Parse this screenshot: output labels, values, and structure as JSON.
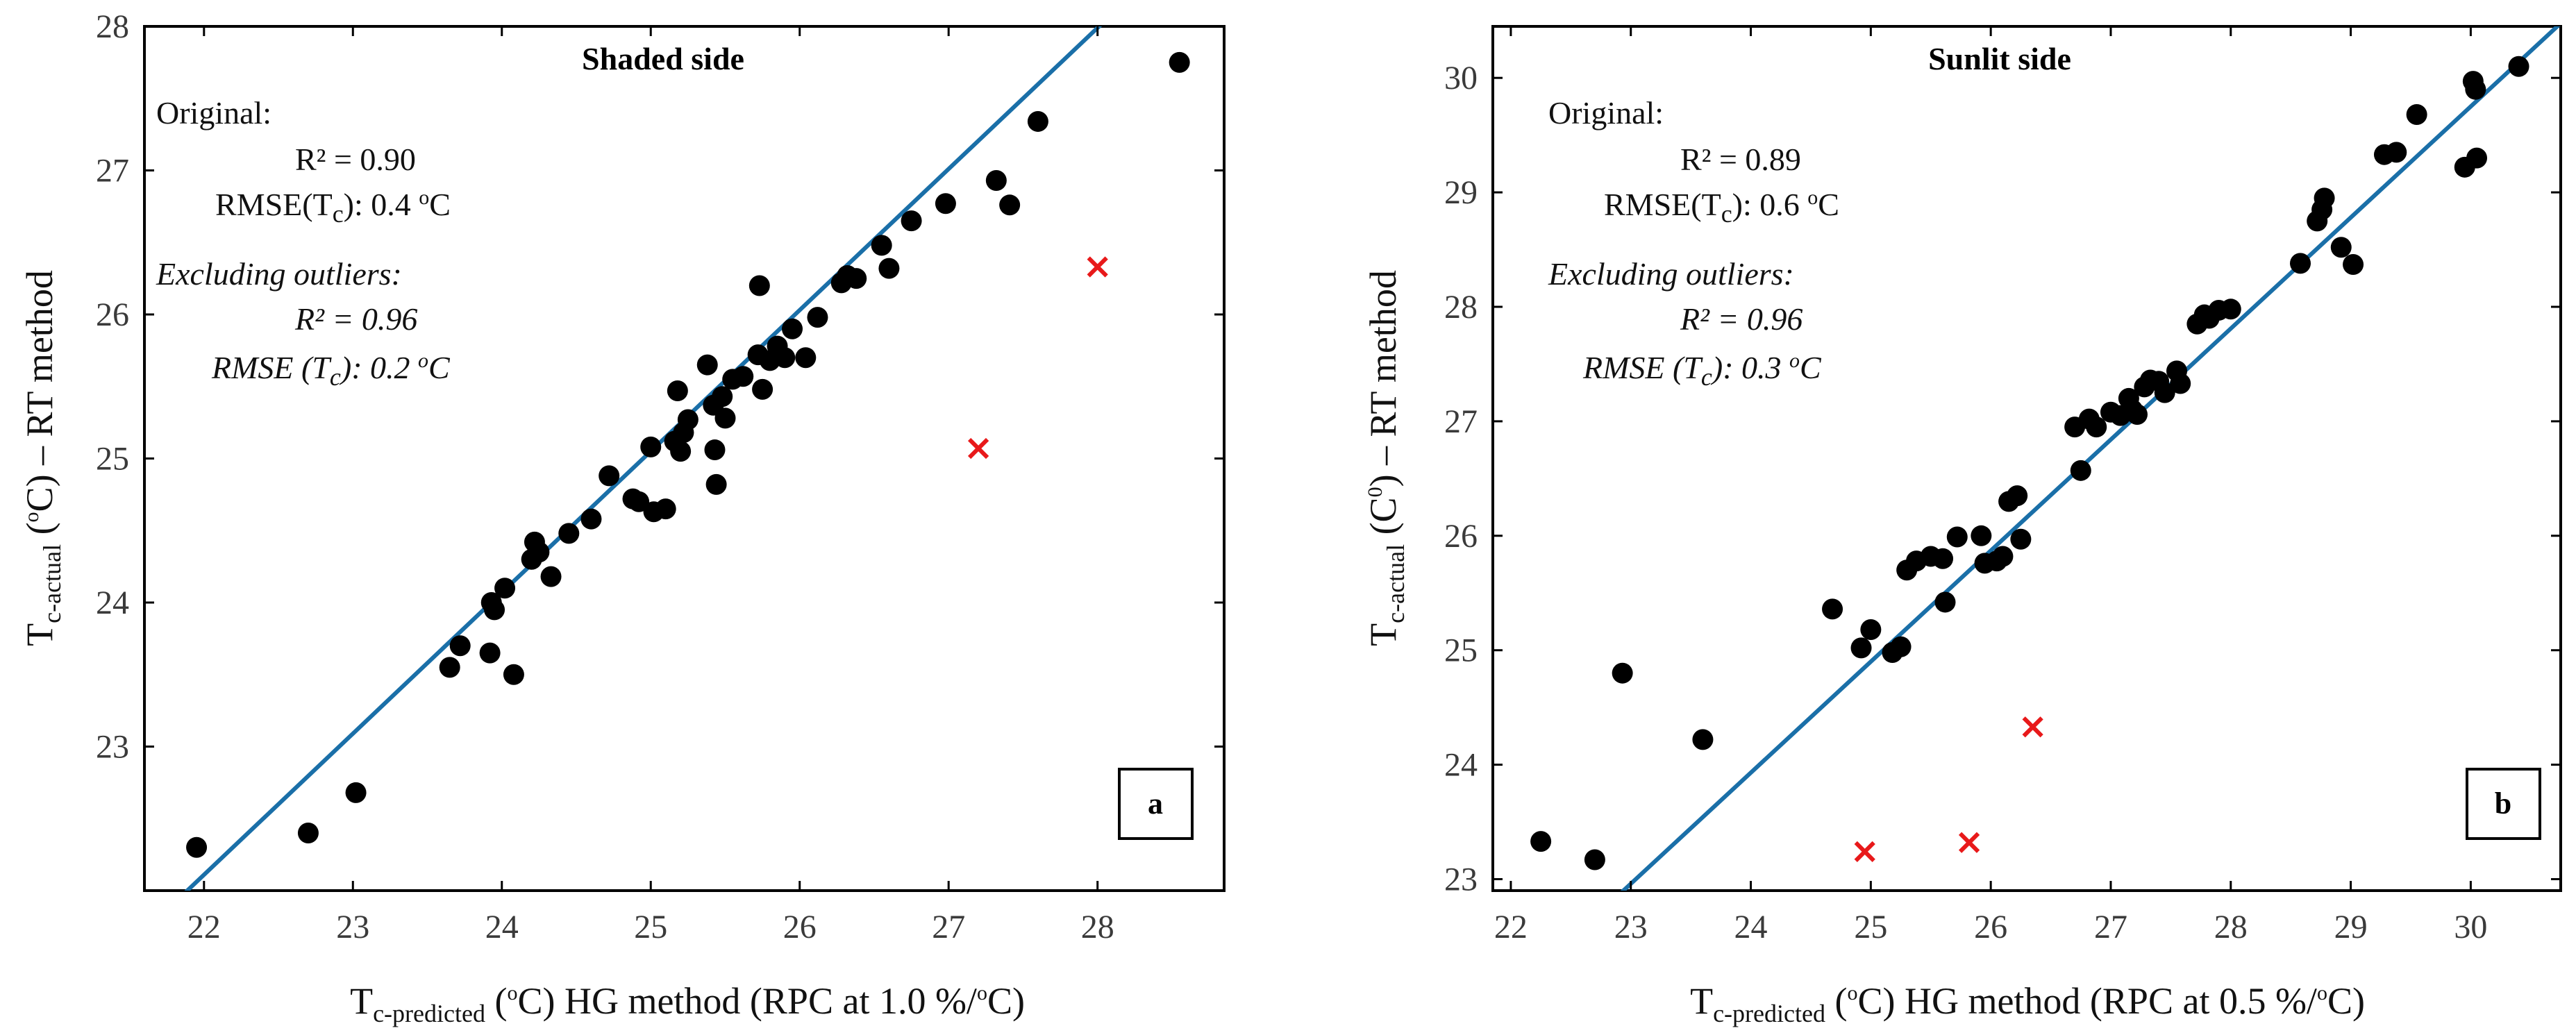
{
  "colors": {
    "point": "#000000",
    "fit_line": "#1a6fa8",
    "outlier": "#e8191a",
    "frame": "#000000"
  },
  "chart_data": [
    {
      "type": "scatter",
      "panel_letter": "a",
      "title": "Shaded side",
      "xlabel": {
        "T": "T",
        "sub": "c-predicted",
        "unit_open": " (",
        "unit_sup": "o",
        "unit_close": "C)  HG method (RPC at 1.0 %/",
        "unit_sup2": "o",
        "unit_end": "C)"
      },
      "ylabel": {
        "T": "T",
        "sub": "c-actual",
        "unit_open": " (",
        "unit_sup": "o",
        "unit_close": "C) – RT method"
      },
      "xlim": [
        21.6,
        28.85
      ],
      "ylim": [
        22.0,
        28.0
      ],
      "xticks": [
        22,
        23,
        24,
        25,
        26,
        27,
        28
      ],
      "yticks": [
        23,
        24,
        25,
        26,
        27,
        28
      ],
      "fit_line": {
        "slope": 0.98,
        "intercept": 0.55
      },
      "annotation": {
        "original_label": "Original:",
        "r2": "R² = 0.90",
        "rmse_prefix": "RMSE(T",
        "rmse_sub": "c",
        "rmse_value": "): 0.4 ",
        "rmse_sup": "o",
        "rmse_unit": "C",
        "excl_label": "Excluding outliers:",
        "excl_r2": "R² = 0.96",
        "excl_rmse_prefix": "RMSE (T",
        "excl_rmse_sub": "c",
        "excl_rmse_value": "): 0.2 ",
        "excl_rmse_sup": "o",
        "excl_rmse_unit": "C"
      },
      "outliers": [
        {
          "x": 27.2,
          "y": 25.07
        },
        {
          "x": 28.0,
          "y": 26.33
        }
      ],
      "points": [
        {
          "x": 21.95,
          "y": 22.3
        },
        {
          "x": 22.7,
          "y": 22.4
        },
        {
          "x": 23.02,
          "y": 22.68
        },
        {
          "x": 23.65,
          "y": 23.55
        },
        {
          "x": 23.72,
          "y": 23.7
        },
        {
          "x": 23.92,
          "y": 23.65
        },
        {
          "x": 23.93,
          "y": 24.0
        },
        {
          "x": 23.95,
          "y": 23.95
        },
        {
          "x": 24.02,
          "y": 24.1
        },
        {
          "x": 24.08,
          "y": 23.5
        },
        {
          "x": 24.2,
          "y": 24.3
        },
        {
          "x": 24.22,
          "y": 24.42
        },
        {
          "x": 24.25,
          "y": 24.35
        },
        {
          "x": 24.33,
          "y": 24.18
        },
        {
          "x": 24.45,
          "y": 24.48
        },
        {
          "x": 24.6,
          "y": 24.58
        },
        {
          "x": 24.72,
          "y": 24.88
        },
        {
          "x": 24.88,
          "y": 24.72
        },
        {
          "x": 24.92,
          "y": 24.7
        },
        {
          "x": 25.0,
          "y": 25.08
        },
        {
          "x": 25.02,
          "y": 24.63
        },
        {
          "x": 25.1,
          "y": 24.65
        },
        {
          "x": 25.16,
          "y": 25.12
        },
        {
          "x": 25.18,
          "y": 25.47
        },
        {
          "x": 25.2,
          "y": 25.05
        },
        {
          "x": 25.22,
          "y": 25.18
        },
        {
          "x": 25.25,
          "y": 25.27
        },
        {
          "x": 25.38,
          "y": 25.65
        },
        {
          "x": 25.42,
          "y": 25.37
        },
        {
          "x": 25.43,
          "y": 25.06
        },
        {
          "x": 25.44,
          "y": 24.82
        },
        {
          "x": 25.48,
          "y": 25.43
        },
        {
          "x": 25.5,
          "y": 25.28
        },
        {
          "x": 25.55,
          "y": 25.55
        },
        {
          "x": 25.62,
          "y": 25.57
        },
        {
          "x": 25.72,
          "y": 25.72
        },
        {
          "x": 25.73,
          "y": 26.2
        },
        {
          "x": 25.75,
          "y": 25.48
        },
        {
          "x": 25.8,
          "y": 25.68
        },
        {
          "x": 25.85,
          "y": 25.78
        },
        {
          "x": 25.9,
          "y": 25.7
        },
        {
          "x": 25.95,
          "y": 25.9
        },
        {
          "x": 26.04,
          "y": 25.7
        },
        {
          "x": 26.12,
          "y": 25.98
        },
        {
          "x": 26.28,
          "y": 26.22
        },
        {
          "x": 26.32,
          "y": 26.27
        },
        {
          "x": 26.38,
          "y": 26.25
        },
        {
          "x": 26.55,
          "y": 26.48
        },
        {
          "x": 26.6,
          "y": 26.32
        },
        {
          "x": 26.75,
          "y": 26.65
        },
        {
          "x": 26.98,
          "y": 26.77
        },
        {
          "x": 27.32,
          "y": 26.93
        },
        {
          "x": 27.41,
          "y": 26.76
        },
        {
          "x": 27.6,
          "y": 27.34
        },
        {
          "x": 28.55,
          "y": 27.75
        }
      ]
    },
    {
      "type": "scatter",
      "panel_letter": "b",
      "title": "Sunlit side",
      "xlabel": {
        "T": "T",
        "sub": "c-predicted",
        "unit_open": " (",
        "unit_sup": "o",
        "unit_close": "C)  HG method (RPC at 0.5 %/",
        "unit_sup2": "o",
        "unit_end": "C)"
      },
      "ylabel": {
        "T": "T",
        "sub": "c-actual",
        "unit_open": " (C",
        "unit_sup": "0",
        "unit_close": ") – RT method"
      },
      "xlim": [
        21.85,
        30.75
      ],
      "ylim": [
        22.9,
        30.45
      ],
      "xticks": [
        22,
        23,
        24,
        25,
        26,
        27,
        28,
        29,
        30
      ],
      "yticks": [
        23,
        24,
        25,
        26,
        27,
        28,
        29,
        30
      ],
      "fit_line": {
        "slope": 0.97,
        "intercept": 0.65
      },
      "annotation": {
        "original_label": "Original:",
        "r2": "R² = 0.89",
        "rmse_prefix": "RMSE(T",
        "rmse_sub": "c",
        "rmse_value": "): 0.6 ",
        "rmse_sup": "o",
        "rmse_unit": "C",
        "excl_label": "Excluding outliers:",
        "excl_r2": "R² = 0.96",
        "excl_rmse_prefix": "RMSE (T",
        "excl_rmse_sub": "c",
        "excl_rmse_value": "): 0.3 ",
        "excl_rmse_sup": "o",
        "excl_rmse_unit": "C"
      },
      "outliers": [
        {
          "x": 24.95,
          "y": 23.24
        },
        {
          "x": 25.82,
          "y": 23.32
        },
        {
          "x": 26.35,
          "y": 24.33
        }
      ],
      "points": [
        {
          "x": 22.25,
          "y": 23.33
        },
        {
          "x": 22.7,
          "y": 23.17
        },
        {
          "x": 22.93,
          "y": 24.8
        },
        {
          "x": 23.6,
          "y": 24.22
        },
        {
          "x": 24.68,
          "y": 25.36
        },
        {
          "x": 24.92,
          "y": 25.02
        },
        {
          "x": 25.0,
          "y": 25.18
        },
        {
          "x": 25.18,
          "y": 24.98
        },
        {
          "x": 25.25,
          "y": 25.03
        },
        {
          "x": 25.3,
          "y": 25.7
        },
        {
          "x": 25.38,
          "y": 25.78
        },
        {
          "x": 25.5,
          "y": 25.82
        },
        {
          "x": 25.6,
          "y": 25.8
        },
        {
          "x": 25.62,
          "y": 25.42
        },
        {
          "x": 25.72,
          "y": 25.99
        },
        {
          "x": 25.92,
          "y": 26.0
        },
        {
          "x": 25.95,
          "y": 25.76
        },
        {
          "x": 26.05,
          "y": 25.78
        },
        {
          "x": 26.1,
          "y": 25.82
        },
        {
          "x": 26.15,
          "y": 26.3
        },
        {
          "x": 26.22,
          "y": 26.35
        },
        {
          "x": 26.25,
          "y": 25.97
        },
        {
          "x": 26.7,
          "y": 26.95
        },
        {
          "x": 26.75,
          "y": 26.57
        },
        {
          "x": 26.82,
          "y": 27.02
        },
        {
          "x": 26.88,
          "y": 26.95
        },
        {
          "x": 27.0,
          "y": 27.08
        },
        {
          "x": 27.08,
          "y": 27.05
        },
        {
          "x": 27.15,
          "y": 27.2
        },
        {
          "x": 27.18,
          "y": 27.1
        },
        {
          "x": 27.22,
          "y": 27.06
        },
        {
          "x": 27.28,
          "y": 27.3
        },
        {
          "x": 27.33,
          "y": 27.36
        },
        {
          "x": 27.4,
          "y": 27.35
        },
        {
          "x": 27.45,
          "y": 27.25
        },
        {
          "x": 27.55,
          "y": 27.44
        },
        {
          "x": 27.58,
          "y": 27.33
        },
        {
          "x": 27.72,
          "y": 27.85
        },
        {
          "x": 27.78,
          "y": 27.93
        },
        {
          "x": 27.82,
          "y": 27.9
        },
        {
          "x": 27.9,
          "y": 27.97
        },
        {
          "x": 28.0,
          "y": 27.98
        },
        {
          "x": 28.58,
          "y": 28.38
        },
        {
          "x": 28.72,
          "y": 28.75
        },
        {
          "x": 28.76,
          "y": 28.85
        },
        {
          "x": 28.78,
          "y": 28.95
        },
        {
          "x": 28.92,
          "y": 28.52
        },
        {
          "x": 29.02,
          "y": 28.37
        },
        {
          "x": 29.28,
          "y": 29.33
        },
        {
          "x": 29.38,
          "y": 29.35
        },
        {
          "x": 29.55,
          "y": 29.68
        },
        {
          "x": 29.95,
          "y": 29.22
        },
        {
          "x": 30.02,
          "y": 29.97
        },
        {
          "x": 30.04,
          "y": 29.9
        },
        {
          "x": 30.05,
          "y": 29.3
        },
        {
          "x": 30.4,
          "y": 30.1
        }
      ]
    }
  ]
}
